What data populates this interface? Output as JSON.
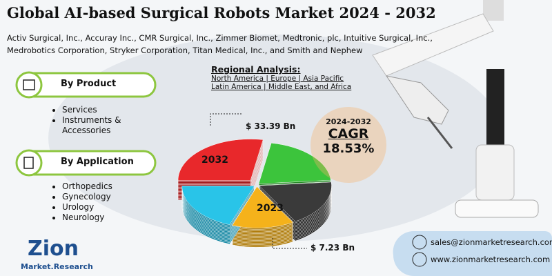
{
  "header": {
    "title": "Global AI-based Surgical Robots Market 2024 - 2032",
    "companies": [
      "Activ Surgical, Inc., Accuray Inc., CMR Surgical, Inc., Zimmer Biomet, Medtronic, plc, Intuitive Surgical, Inc.,",
      "Medrobotics Corporation, Stryker Corporation, Titan Medical, Inc., and Smith and Nephew"
    ]
  },
  "regional_analysis": {
    "title": "Regional Analysis:",
    "lines": [
      "North America | Europe | Asia Pacific",
      "Latin America | Middle East, and Africa"
    ]
  },
  "segments": [
    {
      "title": "By Product",
      "items": [
        "Services",
        "Instruments & Accessories"
      ]
    },
    {
      "title": "By Application",
      "items": [
        "Orthopedics",
        "Gynecology",
        "Urology",
        "Neurology"
      ]
    }
  ],
  "market": {
    "label_2032": "2032",
    "value_2032": "$ 33.39 Bn",
    "label_2023": "2023",
    "value_2023": "$ 7.23 Bn"
  },
  "cagr": {
    "period": "2024-2032",
    "label": "CAGR",
    "value": "18.53%"
  },
  "logo": {
    "name": "Zion",
    "sub": "Market.Research"
  },
  "contact": {
    "email": "sales@zionmarketresearch.com",
    "website": "www.zionmarketresearch.com"
  }
}
